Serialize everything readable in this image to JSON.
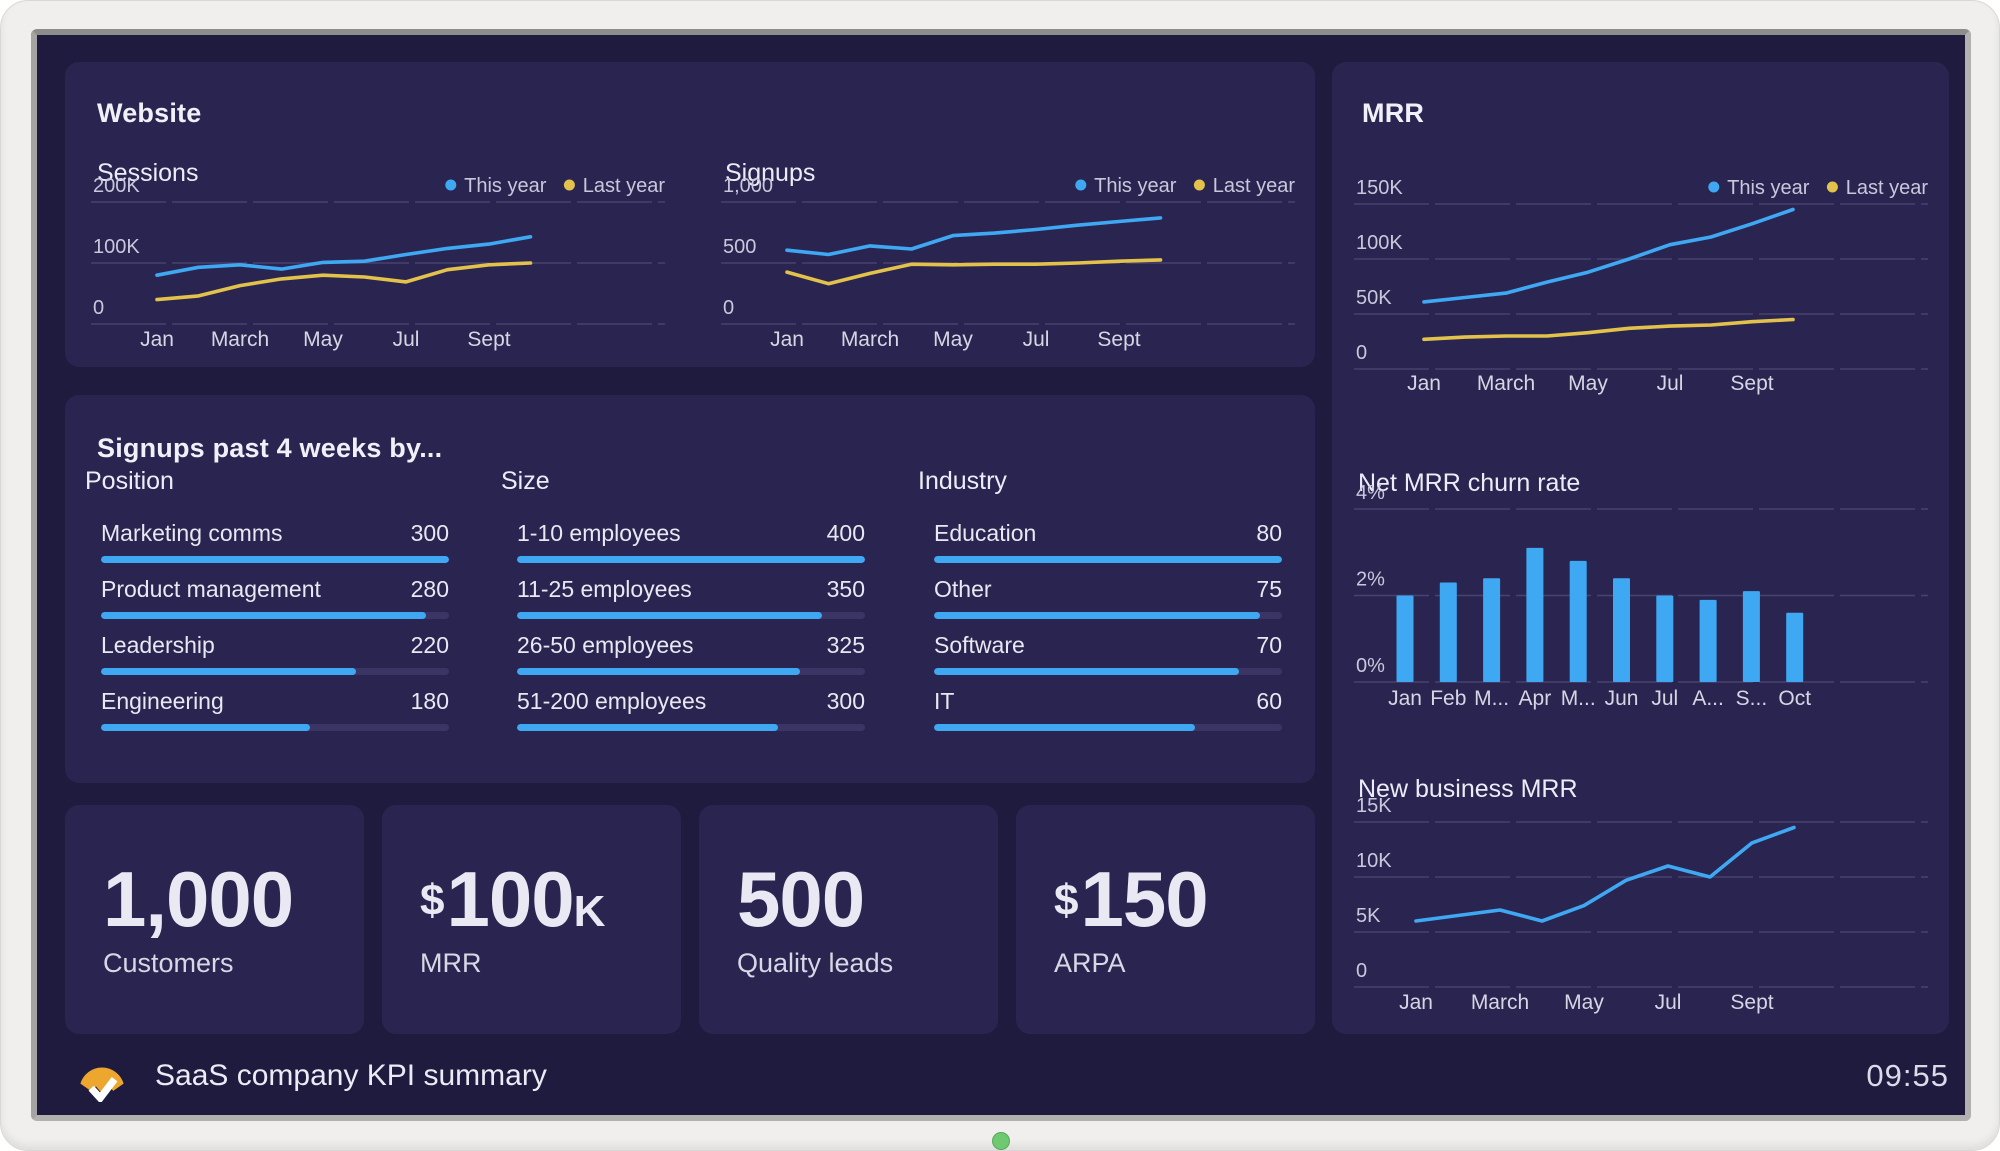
{
  "colors": {
    "screen_bg": "#1e1b3e",
    "panel_bg": "#2a2550",
    "accent_blue": "#3fa8f2",
    "accent_yellow": "#e2c24b",
    "grid": "#47436e",
    "axis_text": "#c9c7dc",
    "tick_text": "#d7d5e4",
    "bar_track": "#3a3564",
    "logo_amber": "#eda72f",
    "led_green": "#6fc971"
  },
  "legend": {
    "this_year": "This year",
    "last_year": "Last year"
  },
  "panels": {
    "website": {
      "title": "Website",
      "sessions_title": "Sessions",
      "signups_title": "Signups"
    },
    "signups_by": {
      "title": "Signups past 4 weeks by...",
      "groups": [
        {
          "title": "Position",
          "rows": [
            {
              "label": "Marketing comms",
              "value": 300
            },
            {
              "label": "Product management",
              "value": 280
            },
            {
              "label": "Leadership",
              "value": 220
            },
            {
              "label": "Engineering",
              "value": 180
            }
          ]
        },
        {
          "title": "Size",
          "rows": [
            {
              "label": "1-10 employees",
              "value": 400
            },
            {
              "label": "11-25 employees",
              "value": 350
            },
            {
              "label": "26-50 employees",
              "value": 325
            },
            {
              "label": "51-200 employees",
              "value": 300
            }
          ]
        },
        {
          "title": "Industry",
          "rows": [
            {
              "label": "Education",
              "value": 80
            },
            {
              "label": "Other",
              "value": 75
            },
            {
              "label": "Software",
              "value": 70
            },
            {
              "label": "IT",
              "value": 60
            }
          ]
        }
      ]
    },
    "mrr": {
      "title": "MRR",
      "churn_title": "Net MRR churn rate",
      "newbiz_title": "New business MRR"
    },
    "kpis": [
      {
        "prefix": "",
        "value": "1,000",
        "suffix": "",
        "label": "Customers"
      },
      {
        "prefix": "$",
        "value": "100",
        "suffix": "K",
        "label": "MRR"
      },
      {
        "prefix": "",
        "value": "500",
        "suffix": "",
        "label": "Quality leads"
      },
      {
        "prefix": "$",
        "value": "150",
        "suffix": "",
        "label": "ARPA"
      }
    ]
  },
  "footer": {
    "title": "SaaS company KPI summary",
    "time": "09:55"
  },
  "chart_data": [
    {
      "id": "sessions",
      "type": "line",
      "title": "Sessions",
      "unit": "thousands",
      "categories": [
        "Jan",
        "Feb",
        "Mar",
        "Apr",
        "May",
        "Jun",
        "Jul",
        "Aug",
        "Sep",
        "Oct"
      ],
      "x_ticks": [
        {
          "i": 0,
          "label": "Jan"
        },
        {
          "i": 2,
          "label": "March"
        },
        {
          "i": 4,
          "label": "May"
        },
        {
          "i": 6,
          "label": "Jul"
        },
        {
          "i": 8,
          "label": "Sept"
        }
      ],
      "yticks": [
        {
          "label": "200K",
          "value": 200
        },
        {
          "label": "100K",
          "value": 100
        },
        {
          "label": "0",
          "value": 0
        }
      ],
      "legend": true,
      "grid": "dashed",
      "series": [
        {
          "name": "This year",
          "color_key": "accent_blue",
          "values": [
            80,
            93,
            97,
            90,
            101,
            103,
            114,
            124,
            131,
            143
          ]
        },
        {
          "name": "Last year",
          "color_key": "accent_yellow",
          "values": [
            40,
            46,
            63,
            74,
            80,
            77,
            69,
            89,
            97,
            100
          ]
        }
      ]
    },
    {
      "id": "signups",
      "type": "line",
      "title": "Signups",
      "unit": "count",
      "categories": [
        "Jan",
        "Feb",
        "Mar",
        "Apr",
        "May",
        "Jun",
        "Jul",
        "Aug",
        "Sep",
        "Oct"
      ],
      "x_ticks": [
        {
          "i": 0,
          "label": "Jan"
        },
        {
          "i": 2,
          "label": "March"
        },
        {
          "i": 4,
          "label": "May"
        },
        {
          "i": 6,
          "label": "Jul"
        },
        {
          "i": 8,
          "label": "Sept"
        }
      ],
      "yticks": [
        {
          "label": "1,000",
          "value": 1000
        },
        {
          "label": "500",
          "value": 500
        },
        {
          "label": "0",
          "value": 0
        }
      ],
      "legend": true,
      "grid": "dashed",
      "series": [
        {
          "name": "This year",
          "color_key": "accent_blue",
          "values": [
            605,
            570,
            640,
            615,
            725,
            745,
            775,
            810,
            840,
            870
          ]
        },
        {
          "name": "Last year",
          "color_key": "accent_yellow",
          "values": [
            425,
            330,
            415,
            490,
            485,
            490,
            490,
            500,
            515,
            525
          ]
        }
      ]
    },
    {
      "id": "mrr",
      "type": "line",
      "title": "MRR",
      "unit": "thousands USD",
      "categories": [
        "Jan",
        "Feb",
        "Mar",
        "Apr",
        "May",
        "Jun",
        "Jul",
        "Aug",
        "Sep",
        "Oct"
      ],
      "x_ticks": [
        {
          "i": 0,
          "label": "Jan"
        },
        {
          "i": 2,
          "label": "March"
        },
        {
          "i": 4,
          "label": "May"
        },
        {
          "i": 6,
          "label": "Jul"
        },
        {
          "i": 8,
          "label": "Sept"
        }
      ],
      "yticks": [
        {
          "label": "150K",
          "value": 150
        },
        {
          "label": "100K",
          "value": 100
        },
        {
          "label": "50K",
          "value": 50
        },
        {
          "label": "0",
          "value": 0
        }
      ],
      "legend": true,
      "grid": "dashed",
      "series": [
        {
          "name": "This year",
          "color_key": "accent_blue",
          "values": [
            61,
            65,
            69,
            79,
            88,
            100,
            113,
            120,
            132,
            145
          ]
        },
        {
          "name": "Last year",
          "color_key": "accent_yellow",
          "values": [
            27,
            29,
            30,
            30,
            33,
            37,
            39,
            40,
            43,
            45
          ]
        }
      ]
    },
    {
      "id": "churn",
      "type": "bar",
      "title": "Net MRR churn rate",
      "unit": "percent",
      "categories": [
        "Jan",
        "Feb",
        "Mar",
        "Apr",
        "May",
        "Jun",
        "Jul",
        "Aug",
        "Sep",
        "Oct"
      ],
      "x_ticks": [
        {
          "i": 0,
          "label": "Jan"
        },
        {
          "i": 1,
          "label": "Feb"
        },
        {
          "i": 2,
          "label": "M..."
        },
        {
          "i": 3,
          "label": "Apr"
        },
        {
          "i": 4,
          "label": "M..."
        },
        {
          "i": 5,
          "label": "Jun"
        },
        {
          "i": 6,
          "label": "Jul"
        },
        {
          "i": 7,
          "label": "A..."
        },
        {
          "i": 8,
          "label": "S..."
        },
        {
          "i": 9,
          "label": "Oct"
        }
      ],
      "yticks": [
        {
          "label": "4%",
          "value": 4
        },
        {
          "label": "2%",
          "value": 2
        },
        {
          "label": "0%",
          "value": 0
        }
      ],
      "legend": false,
      "grid": "dashed",
      "series": [
        {
          "name": "Net MRR churn rate",
          "color_key": "accent_blue",
          "values": [
            2.0,
            2.3,
            2.4,
            3.1,
            2.8,
            2.4,
            2.0,
            1.9,
            2.1,
            1.6
          ]
        }
      ]
    },
    {
      "id": "newbiz",
      "type": "line",
      "title": "New business MRR",
      "unit": "thousands USD",
      "categories": [
        "Jan",
        "Feb",
        "Mar",
        "Apr",
        "May",
        "Jun",
        "Jul",
        "Aug",
        "Sep",
        "Oct"
      ],
      "x_ticks": [
        {
          "i": 0,
          "label": "Jan"
        },
        {
          "i": 2,
          "label": "March"
        },
        {
          "i": 4,
          "label": "May"
        },
        {
          "i": 6,
          "label": "Jul"
        },
        {
          "i": 8,
          "label": "Sept"
        }
      ],
      "yticks": [
        {
          "label": "15K",
          "value": 15
        },
        {
          "label": "10K",
          "value": 10
        },
        {
          "label": "5K",
          "value": 5
        },
        {
          "label": "0",
          "value": 0
        }
      ],
      "legend": false,
      "grid": "dashed",
      "series": [
        {
          "name": "New business MRR",
          "color_key": "accent_blue",
          "values": [
            6.0,
            6.5,
            7.0,
            6.0,
            7.4,
            9.7,
            11.0,
            10.0,
            13.1,
            14.5
          ]
        }
      ]
    }
  ]
}
